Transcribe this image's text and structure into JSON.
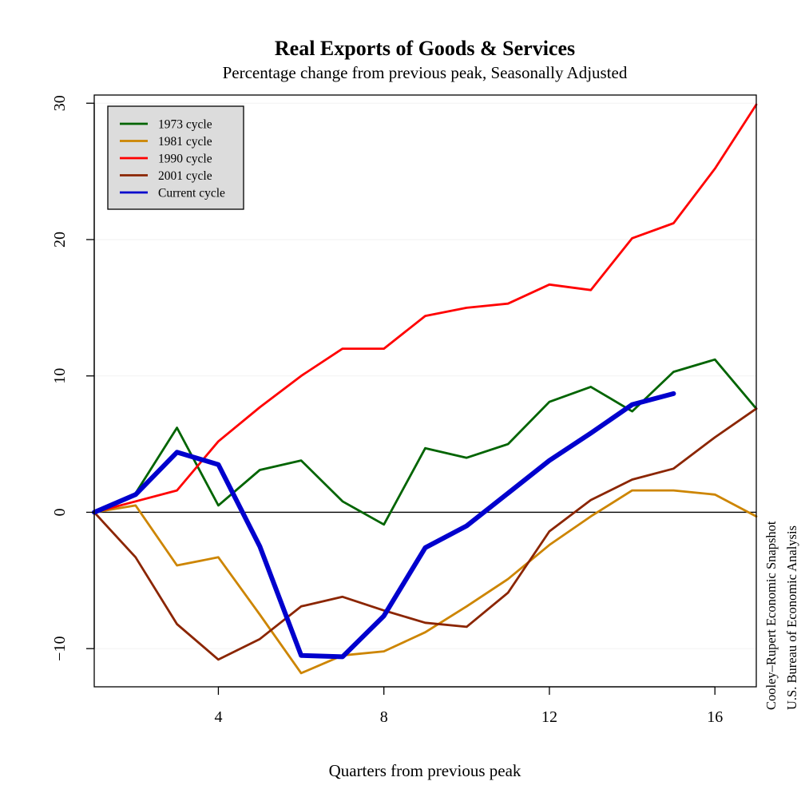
{
  "chart_data": {
    "type": "line",
    "title": "Real Exports of Goods & Services",
    "subtitle": "Percentage change from previous peak, Seasonally Adjusted",
    "xlabel": "Quarters from previous peak",
    "ylabel": "",
    "xlim": [
      1,
      17
    ],
    "ylim": [
      -12.8,
      30.6
    ],
    "x_ticks": [
      4,
      8,
      12,
      16
    ],
    "y_ticks": [
      -10,
      0,
      10,
      20,
      30
    ],
    "grid": true,
    "legend_position": "top-left",
    "reference_line_y": 0,
    "series": [
      {
        "name": "1973 cycle",
        "color": "#006400",
        "width": 2.8,
        "x": [
          1,
          2,
          3,
          4,
          5,
          6,
          7,
          8,
          9,
          10,
          11,
          12,
          13,
          14,
          15,
          16,
          17
        ],
        "y": [
          0,
          1.4,
          6.2,
          0.5,
          3.1,
          3.8,
          0.8,
          -0.9,
          4.7,
          4.0,
          5.0,
          8.1,
          9.2,
          7.4,
          10.3,
          11.2,
          7.6
        ]
      },
      {
        "name": "1981 cycle",
        "color": "#CD8500",
        "width": 2.8,
        "x": [
          1,
          2,
          3,
          4,
          5,
          6,
          7,
          8,
          9,
          10,
          11,
          12,
          13,
          14,
          15,
          16,
          17
        ],
        "y": [
          0,
          0.5,
          -3.9,
          -3.3,
          -7.5,
          -11.8,
          -10.5,
          -10.2,
          -8.8,
          -6.9,
          -4.9,
          -2.4,
          -0.3,
          1.6,
          1.6,
          1.3,
          -0.3
        ]
      },
      {
        "name": "1990 cycle",
        "color": "#FF0000",
        "width": 2.8,
        "x": [
          1,
          2,
          3,
          4,
          5,
          6,
          7,
          8,
          9,
          10,
          11,
          12,
          13,
          14,
          15,
          16,
          17
        ],
        "y": [
          0,
          0.8,
          1.6,
          5.2,
          7.7,
          10.0,
          12.0,
          12.0,
          14.4,
          15.0,
          15.3,
          16.7,
          16.3,
          20.1,
          21.2,
          25.2,
          29.9
        ]
      },
      {
        "name": "2001 cycle",
        "color": "#8B2500",
        "width": 2.8,
        "x": [
          1,
          2,
          3,
          4,
          5,
          6,
          7,
          8,
          9,
          10,
          11,
          12,
          13,
          14,
          15,
          16,
          17
        ],
        "y": [
          0,
          -3.3,
          -8.2,
          -10.8,
          -9.3,
          -6.9,
          -6.2,
          -7.2,
          -8.1,
          -8.4,
          -5.9,
          -1.4,
          0.9,
          2.4,
          3.2,
          5.5,
          7.6
        ]
      },
      {
        "name": "Current cycle",
        "color": "#0000CD",
        "width": 6,
        "x": [
          1,
          2,
          3,
          4,
          5,
          6,
          7,
          8,
          9,
          10,
          11,
          12,
          13,
          14,
          15
        ],
        "y": [
          0,
          1.3,
          4.4,
          3.5,
          -2.5,
          -10.5,
          -10.6,
          -7.6,
          -2.6,
          -1.0,
          1.4,
          3.8,
          5.8,
          7.9,
          8.7
        ]
      }
    ]
  },
  "source": {
    "line1": "Cooley–Rupert Economic Snapshot",
    "line2": "U.S. Bureau of Economic Analysis"
  }
}
